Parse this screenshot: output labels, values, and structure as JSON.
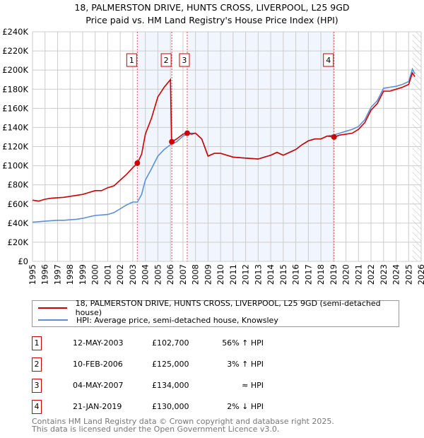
{
  "chart_data": {
    "type": "line",
    "title": "18, PALMERSTON DRIVE, HUNTS CROSS, LIVERPOOL, L25 9GD",
    "subtitle": "Price paid vs. HM Land Registry's House Price Index (HPI)",
    "xlim": [
      1995,
      2026
    ],
    "ylim": [
      0,
      240000
    ],
    "x_ticks": [
      "1995",
      "1996",
      "1997",
      "1998",
      "1999",
      "2000",
      "2001",
      "2002",
      "2003",
      "2004",
      "2005",
      "2006",
      "2007",
      "2008",
      "2009",
      "2010",
      "2011",
      "2012",
      "2013",
      "2014",
      "2015",
      "2016",
      "2017",
      "2018",
      "2019",
      "2020",
      "2021",
      "2022",
      "2023",
      "2024",
      "2025",
      "2026"
    ],
    "y_ticks": [
      "£0",
      "£20K",
      "£40K",
      "£60K",
      "£80K",
      "£100K",
      "£120K",
      "£140K",
      "£160K",
      "£180K",
      "£200K",
      "£220K",
      "£240K"
    ],
    "series": [
      {
        "name": "18, PALMERSTON DRIVE, HUNTS CROSS, LIVERPOOL, L25 9GD (semi-detached house)",
        "color": "#cc0000",
        "x": [
          1995,
          1995.5,
          1996,
          1996.5,
          1997,
          1997.5,
          1998,
          1998.5,
          1999,
          1999.5,
          2000,
          2000.5,
          2001,
          2001.5,
          2002,
          2002.5,
          2003,
          2003.37,
          2003.7,
          2004,
          2004.5,
          2005,
          2005.5,
          2006,
          2006.1,
          2006.5,
          2007,
          2007.34,
          2007.7,
          2008,
          2008.5,
          2009,
          2009.5,
          2010,
          2011,
          2012,
          2013,
          2013.5,
          2014,
          2014.5,
          2015,
          2015.5,
          2016,
          2016.5,
          2017,
          2017.5,
          2018,
          2018.5,
          2019.05,
          2019.5,
          2020,
          2020.5,
          2021,
          2021.5,
          2022,
          2022.5,
          2023,
          2023.5,
          2024,
          2024.5,
          2025,
          2025.3,
          2025.5
        ],
        "y": [
          64000,
          63000,
          65000,
          66000,
          66500,
          67000,
          68000,
          69000,
          70000,
          72000,
          74000,
          74000,
          77000,
          79000,
          85000,
          91000,
          98000,
          102700,
          112000,
          133000,
          150000,
          172000,
          182000,
          190000,
          125000,
          128000,
          133000,
          134000,
          133000,
          134000,
          128000,
          110000,
          113000,
          113000,
          109000,
          108000,
          107000,
          109000,
          111000,
          114000,
          111000,
          114000,
          117000,
          122000,
          126000,
          128000,
          128000,
          131000,
          130000,
          132000,
          133000,
          134000,
          138000,
          145000,
          158000,
          165000,
          178000,
          178000,
          180000,
          182000,
          185000,
          197000,
          193000
        ]
      },
      {
        "name": "HPI: Average price, semi-detached house, Knowsley",
        "color": "#5b8fd6",
        "x": [
          1995,
          1995.5,
          1996,
          1996.5,
          1997,
          1997.5,
          1998,
          1998.5,
          1999,
          1999.5,
          2000,
          2000.5,
          2001,
          2001.5,
          2002,
          2002.5,
          2003,
          2003.37,
          2003.7,
          2004,
          2004.5,
          2005,
          2005.5,
          2006,
          2006.5,
          2007,
          2007.5,
          2008,
          2008.5,
          2009,
          2009.5,
          2010,
          2011,
          2012,
          2013,
          2013.5,
          2014,
          2014.5,
          2015,
          2015.5,
          2016,
          2016.5,
          2017,
          2017.5,
          2018,
          2018.5,
          2019,
          2019.5,
          2020,
          2020.5,
          2021,
          2021.5,
          2022,
          2022.5,
          2023,
          2023.5,
          2024,
          2024.5,
          2025,
          2025.3,
          2025.5
        ],
        "y": [
          41000,
          41500,
          42000,
          42500,
          43000,
          43000,
          43500,
          44000,
          45000,
          46500,
          48000,
          48500,
          49000,
          51000,
          55000,
          59000,
          62000,
          62000,
          70000,
          85000,
          97000,
          110000,
          117000,
          122000,
          125000,
          131000,
          134000,
          134000,
          128000,
          110000,
          113000,
          113000,
          109000,
          108000,
          107000,
          109000,
          111000,
          114000,
          111000,
          114000,
          117000,
          122000,
          126000,
          128000,
          128000,
          131000,
          132000,
          134000,
          136000,
          138000,
          141000,
          148000,
          161000,
          168000,
          181000,
          182000,
          183000,
          185000,
          188000,
          201000,
          196000
        ]
      }
    ],
    "sales": [
      {
        "label": "1",
        "x": 2003.36,
        "y": 102700
      },
      {
        "label": "2",
        "x": 2006.11,
        "y": 125000
      },
      {
        "label": "3",
        "x": 2007.34,
        "y": 134000
      },
      {
        "label": "4",
        "x": 2019.05,
        "y": 130000
      }
    ],
    "shaded_ranges": [
      [
        2003.36,
        2006.11
      ],
      [
        2007.34,
        2019.05
      ]
    ],
    "forecast_hatch_from": 2025.3,
    "legend": [
      {
        "label": "18, PALMERSTON DRIVE, HUNTS CROSS, LIVERPOOL, L25 9GD (semi-detached house)",
        "color": "#cc0000"
      },
      {
        "label": "HPI: Average price, semi-detached house, Knowsley",
        "color": "#5b8fd6"
      }
    ]
  },
  "table": [
    {
      "num": "1",
      "date": "12-MAY-2003",
      "price": "£102,700",
      "rel": "56% ↑ HPI"
    },
    {
      "num": "2",
      "date": "10-FEB-2006",
      "price": "£125,000",
      "rel": "3% ↑ HPI"
    },
    {
      "num": "3",
      "date": "04-MAY-2007",
      "price": "£134,000",
      "rel": "≈ HPI"
    },
    {
      "num": "4",
      "date": "21-JAN-2019",
      "price": "£130,000",
      "rel": "2% ↓ HPI"
    }
  ],
  "footer": {
    "line1": "Contains HM Land Registry data © Crown copyright and database right 2025.",
    "line2": "This data is licensed under the Open Government Licence v3.0."
  }
}
